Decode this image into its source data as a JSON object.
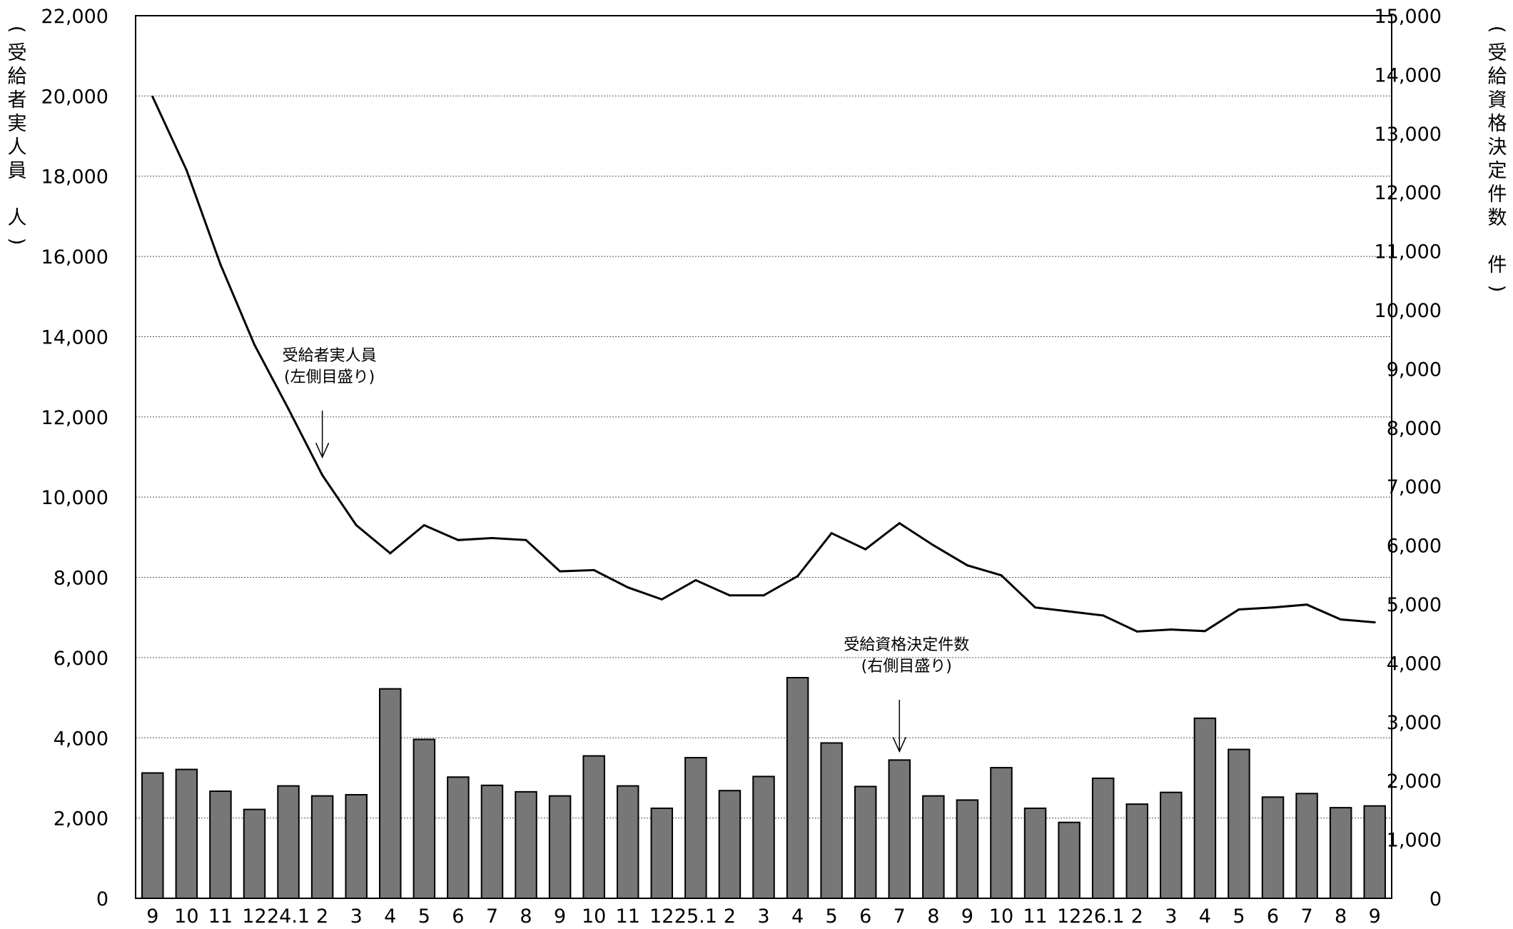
{
  "chart_data": {
    "type": "bar+line",
    "left_axis": {
      "label_chars": [
        "(",
        "受",
        "給",
        "者",
        "実",
        "人",
        "員",
        " ",
        "人",
        ")"
      ],
      "ylim": [
        0,
        22000
      ],
      "ticks": [
        "0",
        "2,000",
        "4,000",
        "6,000",
        "8,000",
        "10,000",
        "12,000",
        "14,000",
        "16,000",
        "18,000",
        "20,000",
        "22,000"
      ]
    },
    "right_axis": {
      "label_chars": [
        "(",
        "受",
        "給",
        "資",
        "格",
        "決",
        "定",
        "件",
        "数",
        " ",
        "件",
        ")"
      ],
      "ylim": [
        0,
        15000
      ],
      "ticks": [
        "0",
        "1,000",
        "2,000",
        "3,000",
        "4,000",
        "5,000",
        "6,000",
        "7,000",
        "8,000",
        "9,000",
        "10,000",
        "11,000",
        "12,000",
        "13,000",
        "14,000",
        "15,000"
      ]
    },
    "categories": [
      "9",
      "10",
      "11",
      "12",
      "24.1",
      "2",
      "3",
      "4",
      "5",
      "6",
      "7",
      "8",
      "9",
      "10",
      "11",
      "12",
      "25.1",
      "2",
      "3",
      "4",
      "5",
      "6",
      "7",
      "8",
      "9",
      "10",
      "11",
      "12",
      "26.1",
      "2",
      "3",
      "4",
      "5",
      "6",
      "7",
      "8",
      "9"
    ],
    "series": [
      {
        "name": "受給資格決定件数",
        "axis": "right",
        "kind": "bar",
        "values": [
          2130,
          2190,
          1820,
          1510,
          1910,
          1740,
          1760,
          3560,
          2700,
          2060,
          1920,
          1810,
          1740,
          2420,
          1910,
          1530,
          2390,
          1830,
          2070,
          3750,
          2640,
          1900,
          2350,
          1740,
          1670,
          2220,
          1530,
          1290,
          2040,
          1600,
          1800,
          3060,
          2530,
          1720,
          1780,
          1540,
          1570
        ]
      },
      {
        "name": "受給者実人員",
        "axis": "left",
        "kind": "line",
        "values": [
          19980,
          18150,
          15800,
          13800,
          12200,
          10550,
          9300,
          8600,
          9300,
          8930,
          8980,
          8930,
          8150,
          8180,
          7750,
          7450,
          7930,
          7550,
          7550,
          8030,
          9100,
          8700,
          9350,
          8800,
          8300,
          8050,
          7250,
          7150,
          7050,
          6650,
          6700,
          6660,
          7200,
          7250,
          7320,
          6950,
          6880
        ]
      }
    ],
    "annotations": [
      {
        "lines": [
          "受給者実人員",
          "(左側目盛り)"
        ],
        "target_index": 5
      },
      {
        "lines": [
          "受給資格決定件数",
          "(右側目盛り)"
        ],
        "target_index": 22
      }
    ],
    "grid": true,
    "legend": "none"
  }
}
